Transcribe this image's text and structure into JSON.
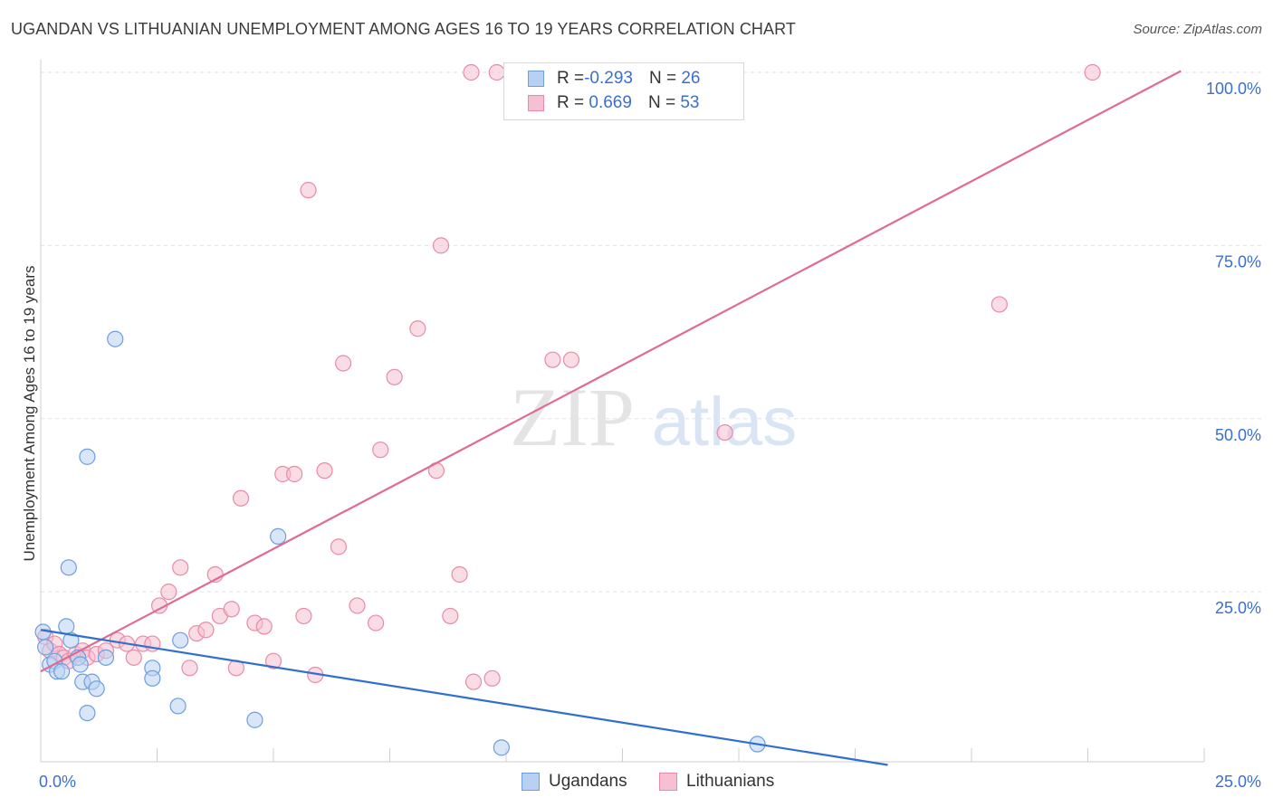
{
  "title": "UGANDAN VS LITHUANIAN UNEMPLOYMENT AMONG AGES 16 TO 19 YEARS CORRELATION CHART",
  "source": "Source: ZipAtlas.com",
  "watermark": {
    "zip": "ZIP",
    "atlas": "atlas"
  },
  "legend": {
    "rows": [
      {
        "r_label": "R = ",
        "r_value": "-0.293",
        "n_label": "N = ",
        "n_value": "26"
      },
      {
        "r_label": "R = ",
        "r_value": " 0.669",
        "n_label": "N = ",
        "n_value": "53"
      }
    ]
  },
  "bottom_legend": {
    "ugandans": "Ugandans",
    "lithuanians": "Lithuanians"
  },
  "colors": {
    "ugandans_fill": "#b8d1f3",
    "ugandans_stroke": "#6e9de0",
    "ugandans_line": "#2f6fd0",
    "lithuanians_fill": "#f6c0d0",
    "lithuanians_stroke": "#e98aa8",
    "lithuanians_line": "#e06a91",
    "tick_label": "#3a6fd0",
    "grid": "#e2e2e2"
  },
  "chart_data": {
    "type": "scatter",
    "title": "UGANDAN VS LITHUANIAN UNEMPLOYMENT AMONG AGES 16 TO 19 YEARS CORRELATION CHART",
    "xlabel": "",
    "ylabel": "Unemployment Among Ages 16 to 19 years",
    "xlim": [
      0,
      25
    ],
    "ylim": [
      0,
      102
    ],
    "x_tick_labels": {
      "min": "0.0%",
      "max": "25.0%"
    },
    "y_tick_labels": [
      {
        "value": 25,
        "label": "25.0%"
      },
      {
        "value": 50,
        "label": "50.0%"
      },
      {
        "value": 75,
        "label": "75.0%"
      },
      {
        "value": 100,
        "label": "100.0%"
      }
    ],
    "grid": true,
    "legend_position": "top-center",
    "series": [
      {
        "name": "Ugandans",
        "stats": {
          "R": -0.293,
          "N": 26
        },
        "trend": {
          "x0": 0,
          "y0": 19.5,
          "x1": 18.2,
          "y1": 0
        },
        "points": [
          [
            0.05,
            19.2
          ],
          [
            0.1,
            17.0
          ],
          [
            0.2,
            14.5
          ],
          [
            0.3,
            15.0
          ],
          [
            0.35,
            13.5
          ],
          [
            0.45,
            13.5
          ],
          [
            0.55,
            20.0
          ],
          [
            0.6,
            28.5
          ],
          [
            0.65,
            18.0
          ],
          [
            0.8,
            15.5
          ],
          [
            0.85,
            14.5
          ],
          [
            0.9,
            12.0
          ],
          [
            1.0,
            7.5
          ],
          [
            1.1,
            12.0
          ],
          [
            1.2,
            11.0
          ],
          [
            1.4,
            15.5
          ],
          [
            1.6,
            61.5
          ],
          [
            1.0,
            44.5
          ],
          [
            2.4,
            14.0
          ],
          [
            2.4,
            12.5
          ],
          [
            2.95,
            8.5
          ],
          [
            3.0,
            18.0
          ],
          [
            4.6,
            6.5
          ],
          [
            5.1,
            33.0
          ],
          [
            9.9,
            2.5
          ],
          [
            15.4,
            3.0
          ]
        ]
      },
      {
        "name": "Lithuanians",
        "stats": {
          "R": 0.669,
          "N": 53
        },
        "trend": {
          "x0": 0,
          "y0": 13.5,
          "x1": 24.5,
          "y1": 100.2
        },
        "points": [
          [
            0.1,
            18.5
          ],
          [
            0.2,
            16.5
          ],
          [
            0.3,
            17.5
          ],
          [
            0.4,
            16.0
          ],
          [
            0.5,
            15.5
          ],
          [
            0.6,
            15.0
          ],
          [
            0.75,
            16.0
          ],
          [
            0.9,
            16.5
          ],
          [
            1.0,
            15.5
          ],
          [
            1.2,
            16.0
          ],
          [
            1.4,
            16.5
          ],
          [
            1.65,
            18.0
          ],
          [
            1.85,
            17.5
          ],
          [
            2.0,
            15.5
          ],
          [
            2.2,
            17.5
          ],
          [
            2.4,
            17.5
          ],
          [
            2.55,
            23.0
          ],
          [
            2.75,
            25.0
          ],
          [
            3.0,
            28.5
          ],
          [
            3.2,
            14.0
          ],
          [
            3.35,
            19.0
          ],
          [
            3.55,
            19.5
          ],
          [
            3.75,
            27.5
          ],
          [
            3.85,
            21.5
          ],
          [
            4.1,
            22.5
          ],
          [
            4.2,
            14.0
          ],
          [
            4.3,
            38.5
          ],
          [
            4.6,
            20.5
          ],
          [
            4.8,
            20.0
          ],
          [
            5.0,
            15.0
          ],
          [
            5.2,
            42.0
          ],
          [
            5.45,
            42.0
          ],
          [
            5.65,
            21.5
          ],
          [
            5.75,
            83.0
          ],
          [
            5.9,
            13.0
          ],
          [
            6.1,
            42.5
          ],
          [
            6.4,
            31.5
          ],
          [
            6.5,
            58.0
          ],
          [
            6.8,
            23.0
          ],
          [
            7.2,
            20.5
          ],
          [
            7.3,
            45.5
          ],
          [
            7.6,
            56.0
          ],
          [
            8.1,
            63.0
          ],
          [
            8.5,
            42.5
          ],
          [
            8.6,
            75.0
          ],
          [
            8.8,
            21.5
          ],
          [
            9.0,
            27.5
          ],
          [
            9.3,
            12.0
          ],
          [
            9.7,
            12.5
          ],
          [
            11.0,
            58.5
          ],
          [
            11.4,
            58.5
          ],
          [
            14.7,
            48.0
          ],
          [
            20.6,
            66.5
          ]
        ]
      }
    ],
    "extra_points_lithuanians_top": [
      [
        9.25,
        100.0
      ],
      [
        9.8,
        100.0
      ],
      [
        22.6,
        100.0
      ]
    ]
  }
}
